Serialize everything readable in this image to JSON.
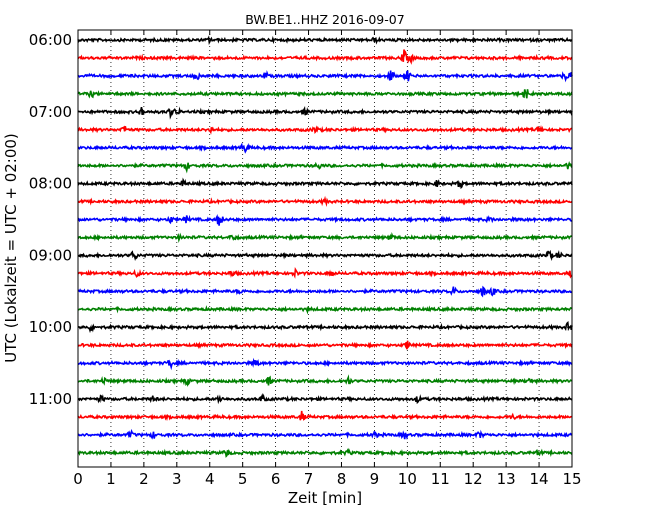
{
  "chart_data": {
    "type": "line",
    "title": "BW.BE1..HHZ 2016-09-07",
    "xlabel": "Zeit  [min]",
    "ylabel": "UTC (Lokalzeit = UTC + 02:00)",
    "xlim": [
      0,
      15
    ],
    "x_ticks": [
      "0",
      "1",
      "2",
      "3",
      "4",
      "5",
      "6",
      "7",
      "8",
      "9",
      "10",
      "11",
      "12",
      "13",
      "14",
      "15"
    ],
    "y_tick_labels": [
      "06:00",
      "07:00",
      "08:00",
      "09:00",
      "10:00",
      "11:00"
    ],
    "trace_interval_min": 15,
    "trace_colors": [
      "#000000",
      "#ff0000",
      "#0000ff",
      "#008000"
    ],
    "traces": [
      {
        "start": "06:00",
        "events": [
          [
            4.0,
            2
          ],
          [
            9.0,
            2
          ]
        ]
      },
      {
        "start": "06:15",
        "events": [
          [
            9.9,
            7
          ],
          [
            10.1,
            4
          ]
        ]
      },
      {
        "start": "06:30",
        "events": [
          [
            3.6,
            4
          ],
          [
            5.7,
            3
          ],
          [
            9.5,
            6
          ],
          [
            10.0,
            6
          ],
          [
            14.8,
            4
          ],
          [
            15.0,
            5
          ]
        ]
      },
      {
        "start": "06:45",
        "events": [
          [
            0.4,
            3
          ],
          [
            13.6,
            6
          ]
        ]
      },
      {
        "start": "07:00",
        "events": [
          [
            1.9,
            5
          ],
          [
            2.8,
            4
          ],
          [
            3.0,
            3
          ],
          [
            6.9,
            3
          ]
        ]
      },
      {
        "start": "07:15",
        "events": [
          [
            1.4,
            4
          ],
          [
            4.0,
            4
          ],
          [
            7.2,
            3
          ],
          [
            14.0,
            3
          ]
        ]
      },
      {
        "start": "07:30",
        "events": [
          [
            5.0,
            3
          ],
          [
            5.1,
            3
          ]
        ]
      },
      {
        "start": "07:45",
        "events": [
          [
            3.3,
            4
          ],
          [
            7.3,
            3
          ],
          [
            14.9,
            3
          ]
        ]
      },
      {
        "start": "08:00",
        "events": [
          [
            3.2,
            3
          ],
          [
            10.9,
            3
          ],
          [
            11.6,
            4
          ]
        ]
      },
      {
        "start": "08:15",
        "events": [
          [
            7.5,
            2
          ]
        ]
      },
      {
        "start": "08:30",
        "events": [
          [
            2.8,
            3
          ],
          [
            3.3,
            3
          ],
          [
            4.3,
            8
          ],
          [
            12.5,
            2
          ]
        ]
      },
      {
        "start": "08:45",
        "events": [
          [
            3.1,
            2
          ],
          [
            4.7,
            3
          ],
          [
            9.5,
            3
          ]
        ]
      },
      {
        "start": "09:00",
        "events": [
          [
            1.7,
            5
          ],
          [
            14.3,
            5
          ],
          [
            14.6,
            3
          ]
        ]
      },
      {
        "start": "09:15",
        "events": [
          [
            1.8,
            3
          ],
          [
            4.7,
            3
          ],
          [
            6.6,
            3
          ],
          [
            7.7,
            3
          ],
          [
            15.0,
            4
          ]
        ]
      },
      {
        "start": "09:30",
        "events": [
          [
            4.9,
            2
          ],
          [
            11.4,
            4
          ],
          [
            12.3,
            5
          ],
          [
            12.6,
            4
          ]
        ]
      },
      {
        "start": "09:45",
        "events": [
          [
            7.0,
            2
          ]
        ]
      },
      {
        "start": "10:00",
        "events": [
          [
            0.4,
            3
          ],
          [
            14.9,
            5
          ]
        ]
      },
      {
        "start": "10:15",
        "events": [
          [
            10.0,
            4
          ]
        ]
      },
      {
        "start": "10:30",
        "events": [
          [
            2.8,
            4
          ],
          [
            5.4,
            4
          ]
        ]
      },
      {
        "start": "10:45",
        "events": [
          [
            0.8,
            3
          ],
          [
            3.3,
            3
          ],
          [
            5.8,
            4
          ],
          [
            8.2,
            4
          ],
          [
            13.7,
            3
          ]
        ]
      },
      {
        "start": "11:00",
        "events": [
          [
            0.7,
            3
          ],
          [
            2.3,
            3
          ],
          [
            4.3,
            3
          ],
          [
            5.6,
            3
          ],
          [
            10.3,
            3
          ]
        ]
      },
      {
        "start": "11:15",
        "events": [
          [
            6.8,
            5
          ],
          [
            13.2,
            2
          ]
        ]
      },
      {
        "start": "11:30",
        "events": [
          [
            1.6,
            3
          ],
          [
            2.3,
            3
          ],
          [
            9.0,
            3
          ],
          [
            9.9,
            4
          ],
          [
            12.2,
            3
          ]
        ]
      },
      {
        "start": "11:45",
        "events": [
          [
            4.5,
            4
          ],
          [
            8.2,
            2
          ],
          [
            14.0,
            2
          ]
        ]
      }
    ]
  }
}
